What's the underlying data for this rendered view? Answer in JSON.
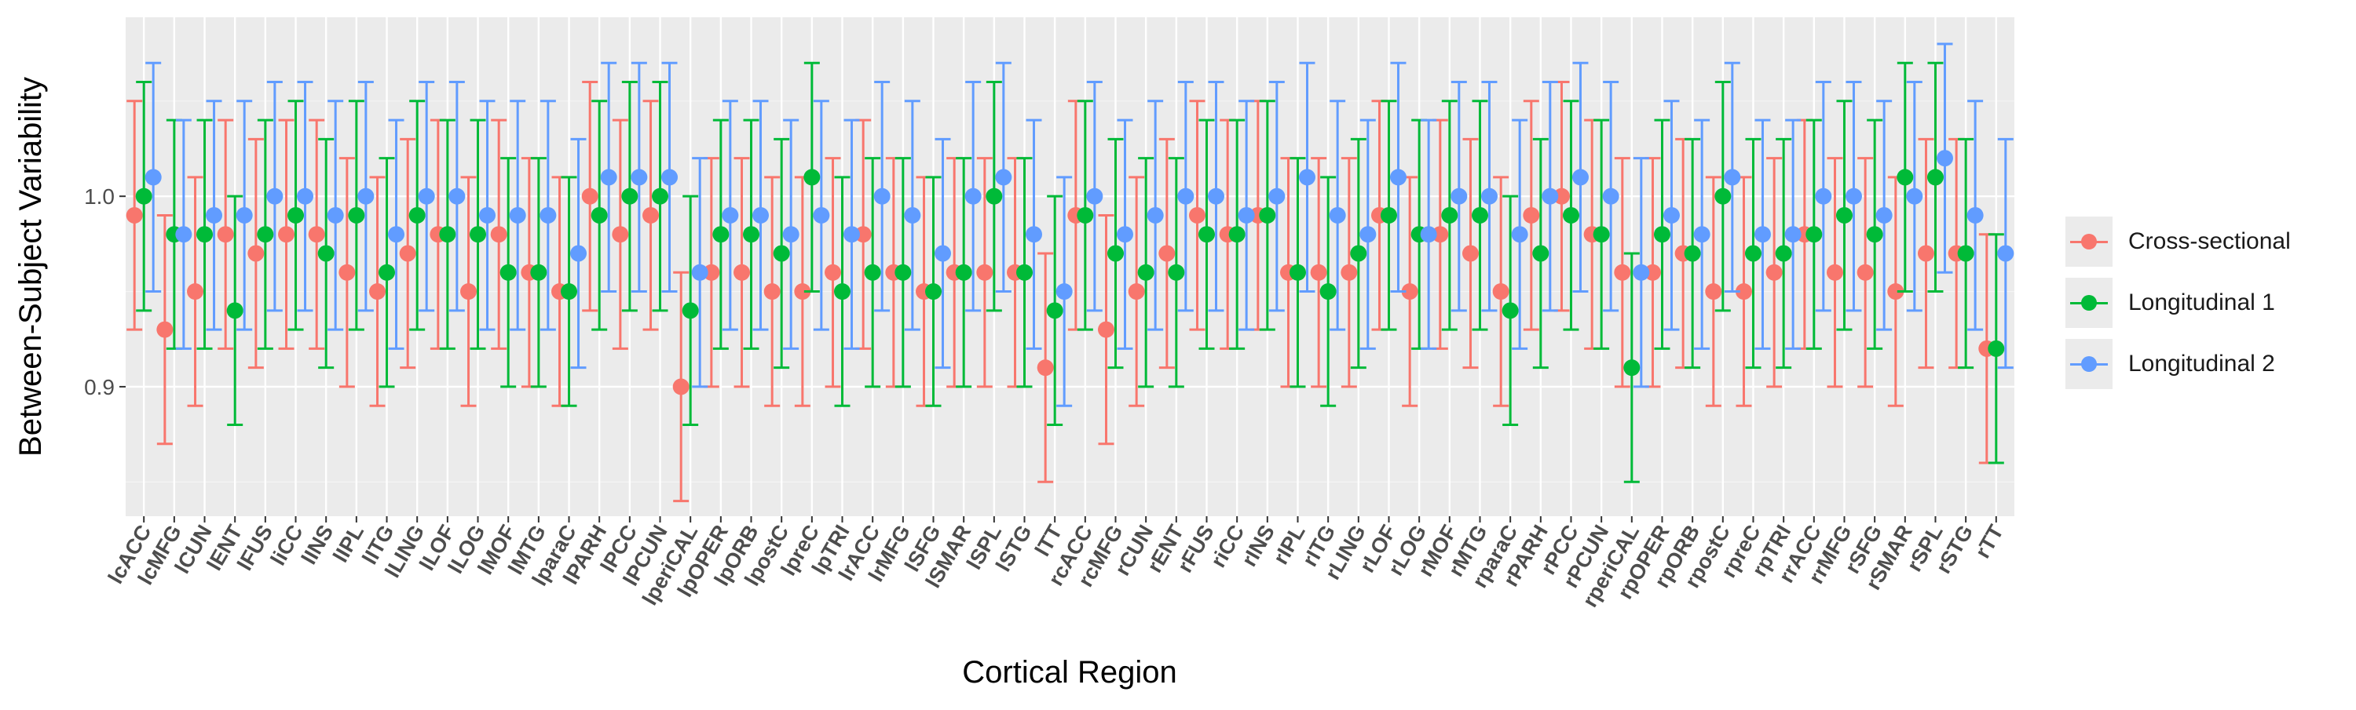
{
  "chart_data": {
    "type": "scatter",
    "title": "",
    "xlabel": "Cortical Region",
    "ylabel": "Between-Subject Variability",
    "ylim": [
      0.832,
      1.094
    ],
    "yticks": [
      0.9,
      1.0
    ],
    "ytick_labels": [
      "0.9",
      "1.0"
    ],
    "grid": true,
    "legend_position": "right",
    "error_bars": true,
    "categories": [
      "lcACC",
      "lcMFG",
      "lCUN",
      "lENT",
      "lFUS",
      "liCC",
      "lINS",
      "lIPL",
      "lITG",
      "lLING",
      "lLOF",
      "lLOG",
      "lMOF",
      "lMTG",
      "lparaC",
      "lPARH",
      "lPCC",
      "lPCUN",
      "lperiCAL",
      "lpOPER",
      "lpORB",
      "lpostC",
      "lpreC",
      "lpTRI",
      "lrACC",
      "lrMFG",
      "lSFG",
      "lSMAR",
      "lSPL",
      "lSTG",
      "lTT",
      "rcACC",
      "rcMFG",
      "rCUN",
      "rENT",
      "rFUS",
      "riCC",
      "rINS",
      "rIPL",
      "rITG",
      "rLING",
      "rLOF",
      "rLOG",
      "rMOF",
      "rMTG",
      "rparaC",
      "rPARH",
      "rPCC",
      "rPCUN",
      "rperiCAL",
      "rpOPER",
      "rpORB",
      "rpostC",
      "rpreC",
      "rpTRI",
      "rrACC",
      "rrMFG",
      "rSFG",
      "rSMAR",
      "rSPL",
      "rSTG",
      "rTT"
    ],
    "series": [
      {
        "name": "Cross-sectional",
        "color": "#F8766D",
        "values": [
          0.99,
          0.93,
          0.95,
          0.98,
          0.97,
          0.98,
          0.98,
          0.96,
          0.95,
          0.97,
          0.98,
          0.95,
          0.98,
          0.96,
          0.95,
          1.0,
          0.98,
          0.99,
          0.9,
          0.96,
          0.96,
          0.95,
          0.95,
          0.96,
          0.98,
          0.96,
          0.95,
          0.96,
          0.96,
          0.96,
          0.91,
          0.99,
          0.93,
          0.95,
          0.97,
          0.99,
          0.98,
          0.99,
          0.96,
          0.96,
          0.96,
          0.99,
          0.95,
          0.98,
          0.97,
          0.95,
          0.99,
          1.0,
          0.98,
          0.96,
          0.96,
          0.97,
          0.95,
          0.95,
          0.96,
          0.98,
          0.96,
          0.96,
          0.95,
          0.97,
          0.97,
          0.92
        ],
        "lower": [
          0.93,
          0.87,
          0.89,
          0.92,
          0.91,
          0.92,
          0.92,
          0.9,
          0.89,
          0.91,
          0.92,
          0.89,
          0.92,
          0.9,
          0.89,
          0.94,
          0.92,
          0.93,
          0.84,
          0.9,
          0.9,
          0.89,
          0.89,
          0.9,
          0.92,
          0.9,
          0.89,
          0.9,
          0.9,
          0.9,
          0.85,
          0.93,
          0.87,
          0.89,
          0.91,
          0.93,
          0.92,
          0.93,
          0.9,
          0.9,
          0.9,
          0.93,
          0.89,
          0.92,
          0.91,
          0.89,
          0.93,
          0.94,
          0.92,
          0.9,
          0.9,
          0.91,
          0.89,
          0.89,
          0.9,
          0.92,
          0.9,
          0.9,
          0.89,
          0.91,
          0.91,
          0.86
        ],
        "upper": [
          1.05,
          0.99,
          1.01,
          1.04,
          1.03,
          1.04,
          1.04,
          1.02,
          1.01,
          1.03,
          1.04,
          1.01,
          1.04,
          1.02,
          1.01,
          1.06,
          1.04,
          1.05,
          0.96,
          1.02,
          1.02,
          1.01,
          1.01,
          1.02,
          1.04,
          1.02,
          1.01,
          1.02,
          1.02,
          1.02,
          0.97,
          1.05,
          0.99,
          1.01,
          1.03,
          1.05,
          1.04,
          1.05,
          1.02,
          1.02,
          1.02,
          1.05,
          1.01,
          1.04,
          1.03,
          1.01,
          1.05,
          1.06,
          1.04,
          1.02,
          1.02,
          1.03,
          1.01,
          1.01,
          1.02,
          1.04,
          1.02,
          1.02,
          1.01,
          1.03,
          1.03,
          0.98
        ]
      },
      {
        "name": "Longitudinal 1",
        "color": "#00BA38",
        "values": [
          1.0,
          0.98,
          0.98,
          0.94,
          0.98,
          0.99,
          0.97,
          0.99,
          0.96,
          0.99,
          0.98,
          0.98,
          0.96,
          0.96,
          0.95,
          0.99,
          1.0,
          1.0,
          0.94,
          0.98,
          0.98,
          0.97,
          1.01,
          0.95,
          0.96,
          0.96,
          0.95,
          0.96,
          1.0,
          0.96,
          0.94,
          0.99,
          0.97,
          0.96,
          0.96,
          0.98,
          0.98,
          0.99,
          0.96,
          0.95,
          0.97,
          0.99,
          0.98,
          0.99,
          0.99,
          0.94,
          0.97,
          0.99,
          0.98,
          0.91,
          0.98,
          0.97,
          1.0,
          0.97,
          0.97,
          0.98,
          0.99,
          0.98,
          1.01,
          1.01,
          0.97,
          0.92
        ],
        "lower": [
          0.94,
          0.92,
          0.92,
          0.88,
          0.92,
          0.93,
          0.91,
          0.93,
          0.9,
          0.93,
          0.92,
          0.92,
          0.9,
          0.9,
          0.89,
          0.93,
          0.94,
          0.94,
          0.88,
          0.92,
          0.92,
          0.91,
          0.95,
          0.89,
          0.9,
          0.9,
          0.89,
          0.9,
          0.94,
          0.9,
          0.88,
          0.93,
          0.91,
          0.9,
          0.9,
          0.92,
          0.92,
          0.93,
          0.9,
          0.89,
          0.91,
          0.93,
          0.92,
          0.93,
          0.93,
          0.88,
          0.91,
          0.93,
          0.92,
          0.85,
          0.92,
          0.91,
          0.94,
          0.91,
          0.91,
          0.92,
          0.93,
          0.92,
          0.95,
          0.95,
          0.91,
          0.86
        ],
        "upper": [
          1.06,
          1.04,
          1.04,
          1.0,
          1.04,
          1.05,
          1.03,
          1.05,
          1.02,
          1.05,
          1.04,
          1.04,
          1.02,
          1.02,
          1.01,
          1.05,
          1.06,
          1.06,
          1.0,
          1.04,
          1.04,
          1.03,
          1.07,
          1.01,
          1.02,
          1.02,
          1.01,
          1.02,
          1.06,
          1.02,
          1.0,
          1.05,
          1.03,
          1.02,
          1.02,
          1.04,
          1.04,
          1.05,
          1.02,
          1.01,
          1.03,
          1.05,
          1.04,
          1.05,
          1.05,
          1.0,
          1.03,
          1.05,
          1.04,
          0.97,
          1.04,
          1.03,
          1.06,
          1.03,
          1.03,
          1.04,
          1.05,
          1.04,
          1.07,
          1.07,
          1.03,
          0.98
        ]
      },
      {
        "name": "Longitudinal 2",
        "color": "#619CFF",
        "values": [
          1.01,
          0.98,
          0.99,
          0.99,
          1.0,
          1.0,
          0.99,
          1.0,
          0.98,
          1.0,
          1.0,
          0.99,
          0.99,
          0.99,
          0.97,
          1.01,
          1.01,
          1.01,
          0.96,
          0.99,
          0.99,
          0.98,
          0.99,
          0.98,
          1.0,
          0.99,
          0.97,
          1.0,
          1.01,
          0.98,
          0.95,
          1.0,
          0.98,
          0.99,
          1.0,
          1.0,
          0.99,
          1.0,
          1.01,
          0.99,
          0.98,
          1.01,
          0.98,
          1.0,
          1.0,
          0.98,
          1.0,
          1.01,
          1.0,
          0.96,
          0.99,
          0.98,
          1.01,
          0.98,
          0.98,
          1.0,
          1.0,
          0.99,
          1.0,
          1.02,
          0.99,
          0.97
        ],
        "lower": [
          0.95,
          0.92,
          0.93,
          0.93,
          0.94,
          0.94,
          0.93,
          0.94,
          0.92,
          0.94,
          0.94,
          0.93,
          0.93,
          0.93,
          0.91,
          0.95,
          0.95,
          0.95,
          0.9,
          0.93,
          0.93,
          0.92,
          0.93,
          0.92,
          0.94,
          0.93,
          0.91,
          0.94,
          0.95,
          0.92,
          0.89,
          0.94,
          0.92,
          0.93,
          0.94,
          0.94,
          0.93,
          0.94,
          0.95,
          0.93,
          0.92,
          0.95,
          0.92,
          0.94,
          0.94,
          0.92,
          0.94,
          0.95,
          0.94,
          0.9,
          0.93,
          0.92,
          0.95,
          0.92,
          0.92,
          0.94,
          0.94,
          0.93,
          0.94,
          0.96,
          0.93,
          0.91
        ],
        "upper": [
          1.07,
          1.04,
          1.05,
          1.05,
          1.06,
          1.06,
          1.05,
          1.06,
          1.04,
          1.06,
          1.06,
          1.05,
          1.05,
          1.05,
          1.03,
          1.07,
          1.07,
          1.07,
          1.02,
          1.05,
          1.05,
          1.04,
          1.05,
          1.04,
          1.06,
          1.05,
          1.03,
          1.06,
          1.07,
          1.04,
          1.01,
          1.06,
          1.04,
          1.05,
          1.06,
          1.06,
          1.05,
          1.06,
          1.07,
          1.05,
          1.04,
          1.07,
          1.04,
          1.06,
          1.06,
          1.04,
          1.06,
          1.07,
          1.06,
          1.02,
          1.05,
          1.04,
          1.07,
          1.04,
          1.04,
          1.06,
          1.06,
          1.05,
          1.06,
          1.08,
          1.05,
          1.03
        ]
      }
    ]
  }
}
